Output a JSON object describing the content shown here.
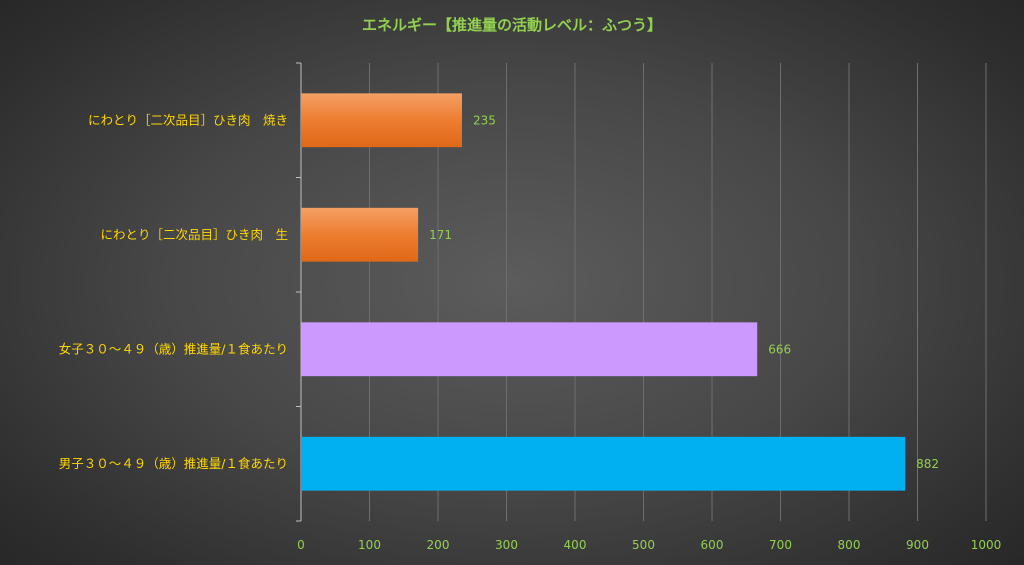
{
  "chart_data": {
    "type": "bar",
    "orientation": "horizontal",
    "title": "エネルギー【推進量の活動レベル：ふつう】",
    "categories": [
      "にわとり［二次品目］ひき肉　焼き",
      "にわとり［二次品目］ひき肉　生",
      "女子３０～４９（歳）推進量/１食あたり",
      "男子３０～４９（歳）推進量/１食あたり"
    ],
    "values": [
      235,
      171,
      666,
      882
    ],
    "data_labels": [
      "235",
      "171",
      "666",
      "882"
    ],
    "xlim": [
      0,
      1000
    ],
    "xticks": [
      "0",
      "100",
      "200",
      "300",
      "400",
      "500",
      "600",
      "700",
      "800",
      "900",
      "1000"
    ],
    "grid": "vertical",
    "legend": "none",
    "colors": {
      "bars": [
        "#ed7d31",
        "#ed7d31",
        "#cc99ff",
        "#00b0f0"
      ],
      "title": "#92d050",
      "category_labels": "#ffd700",
      "tick_labels": "#92d050",
      "data_labels": "#92d050",
      "grid": "#6e6e6e"
    }
  }
}
